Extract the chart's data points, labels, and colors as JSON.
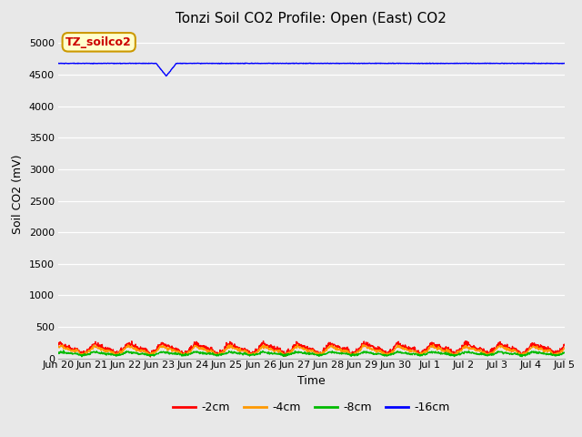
{
  "title": "Tonzi Soil CO2 Profile: Open (East) CO2",
  "ylabel": "Soil CO2 (mV)",
  "xlabel": "Time",
  "ylim": [
    0,
    5200
  ],
  "yticks": [
    0,
    500,
    1000,
    1500,
    2000,
    2500,
    3000,
    3500,
    4000,
    4500,
    5000
  ],
  "bg_color": "#e8e8e8",
  "fig_color": "#e8e8e8",
  "legend_label": "TZ_soilco2",
  "legend_bg": "#ffffcc",
  "legend_border": "#cc9900",
  "series": [
    {
      "label": "-2cm",
      "color": "#ff0000",
      "base": 155,
      "amp": 60,
      "period": 1.0,
      "noise": 18
    },
    {
      "label": "-4cm",
      "color": "#ff9900",
      "base": 125,
      "amp": 50,
      "period": 1.0,
      "noise": 12
    },
    {
      "label": "-8cm",
      "color": "#00bb00",
      "base": 75,
      "amp": 20,
      "period": 1.0,
      "noise": 8
    },
    {
      "label": "-16cm",
      "color": "#0000ff",
      "base": 4680,
      "amp": 0,
      "period": 1.0,
      "noise": 2
    }
  ],
  "n_points": 1440,
  "x_start": 0,
  "x_end": 15,
  "xtick_positions": [
    0,
    1,
    2,
    3,
    4,
    5,
    6,
    7,
    8,
    9,
    10,
    11,
    12,
    13,
    14,
    15
  ],
  "xtick_labels": [
    "Jun 20",
    "Jun 21",
    "Jun 22",
    "Jun 23",
    "Jun 24",
    "Jun 25",
    "Jun 26",
    "Jun 27",
    "Jun 28",
    "Jun 29",
    "Jun 30",
    "Jul 1",
    "Jul 2",
    "Jul 3",
    "Jul 4",
    "Jul 5"
  ],
  "linewidth": 1.0,
  "dip_x": 3.2,
  "dip_depth": 200,
  "dip_width_x": 0.3
}
